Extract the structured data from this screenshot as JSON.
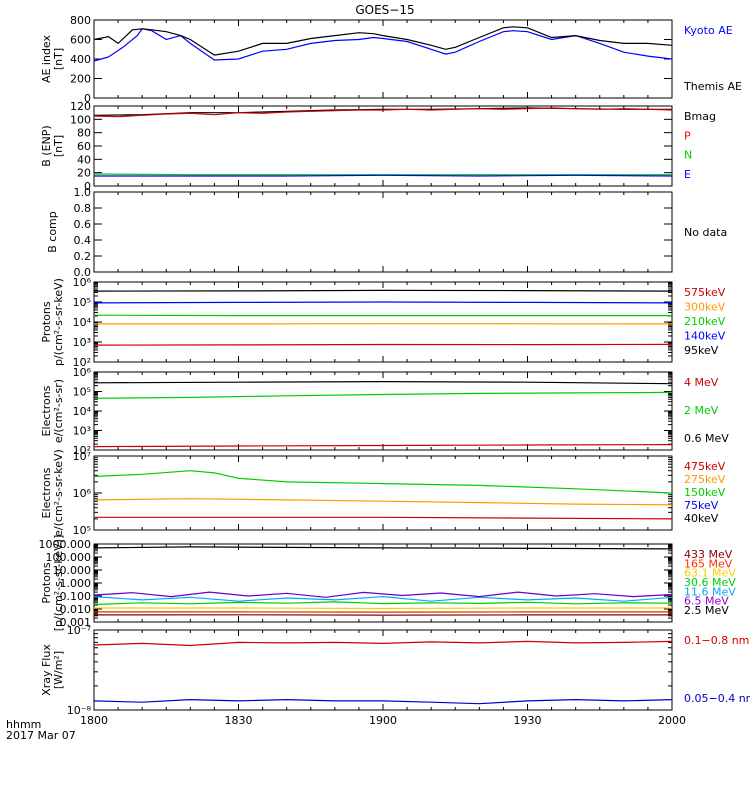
{
  "figure": {
    "title": "GOES−15",
    "time_label_row1": "hhmm",
    "time_label_row2": "2017 Mar 07"
  },
  "chart_data": [
    {
      "id": "ae",
      "type": "line",
      "ylabel": [
        "AE index",
        "[nT]"
      ],
      "ylim": [
        0,
        800
      ],
      "yscale": "linear",
      "yticks": [
        0,
        200,
        400,
        600,
        800
      ],
      "ytick_labels": [
        "0",
        "200",
        "400",
        "600",
        "800"
      ],
      "x_range": [
        "18:00",
        "20:00"
      ],
      "series": [
        {
          "name": "Kyoto AE",
          "color": "#0000ff",
          "x": [
            0,
            3,
            6,
            9,
            10,
            12,
            15,
            18,
            20,
            25,
            30,
            35,
            40,
            45,
            50,
            55,
            58,
            60,
            65,
            70,
            73,
            75,
            80,
            85,
            87,
            90,
            95,
            100,
            105,
            110,
            115,
            120
          ],
          "y": [
            380,
            420,
            520,
            640,
            710,
            690,
            600,
            640,
            560,
            390,
            400,
            480,
            500,
            560,
            590,
            600,
            620,
            610,
            580,
            500,
            450,
            470,
            580,
            680,
            690,
            680,
            600,
            640,
            560,
            470,
            430,
            400
          ]
        },
        {
          "name": "Themis AE",
          "color": "#000000",
          "x": [
            0,
            3,
            5,
            8,
            10,
            12,
            15,
            18,
            20,
            25,
            30,
            35,
            40,
            45,
            50,
            55,
            58,
            60,
            65,
            70,
            73,
            75,
            80,
            85,
            87,
            90,
            95,
            100,
            105,
            110,
            115,
            120
          ],
          "y": [
            600,
            630,
            560,
            700,
            710,
            700,
            680,
            640,
            600,
            440,
            480,
            560,
            560,
            610,
            640,
            670,
            660,
            640,
            600,
            540,
            500,
            520,
            620,
            720,
            730,
            720,
            620,
            640,
            590,
            560,
            560,
            540
          ]
        }
      ],
      "legend": [
        {
          "text": "Kyoto AE",
          "color": "#0000ff"
        },
        {
          "text": "Themis AE",
          "color": "#000000"
        }
      ]
    },
    {
      "id": "bfield",
      "type": "line",
      "ylabel": [
        "B (ENP)",
        "[nT]"
      ],
      "ylim": [
        0,
        120
      ],
      "yscale": "linear",
      "yticks": [
        0,
        20,
        40,
        60,
        80,
        100,
        120
      ],
      "ytick_labels": [
        "0",
        "20",
        "40",
        "60",
        "80",
        "100",
        "120"
      ],
      "series": [
        {
          "name": "Bmag",
          "color": "#000000",
          "x": [
            0,
            10,
            20,
            30,
            40,
            50,
            60,
            70,
            80,
            90,
            100,
            110,
            120
          ],
          "y": [
            106,
            107,
            110,
            110,
            112,
            114,
            115,
            115,
            116,
            117,
            116,
            115,
            115
          ]
        },
        {
          "name": "P",
          "color": "#cc0000",
          "x": [
            0,
            5,
            10,
            15,
            20,
            25,
            30,
            35,
            40,
            45,
            50,
            55,
            60,
            65,
            70,
            75,
            80,
            85,
            90,
            95,
            100,
            105,
            110,
            115,
            120
          ],
          "y": [
            105,
            104,
            106,
            108,
            109,
            107,
            110,
            109,
            111,
            112,
            113,
            114,
            114,
            115,
            114,
            115,
            116,
            115,
            116,
            117,
            116,
            115,
            116,
            115,
            114
          ]
        },
        {
          "name": "N",
          "color": "#00cc00",
          "x": [
            0,
            20,
            40,
            60,
            80,
            100,
            120
          ],
          "y": [
            18,
            17,
            17,
            17,
            17,
            17,
            17
          ]
        },
        {
          "name": "E",
          "color": "#0000ff",
          "x": [
            0,
            20,
            40,
            60,
            80,
            100,
            120
          ],
          "y": [
            15,
            15,
            15,
            16,
            15,
            16,
            15
          ]
        }
      ],
      "legend": [
        {
          "text": "Bmag",
          "color": "#000000"
        },
        {
          "text": "P",
          "color": "#ff0000"
        },
        {
          "text": "N",
          "color": "#00cc00"
        },
        {
          "text": "E",
          "color": "#0000ff"
        }
      ]
    },
    {
      "id": "bcomp",
      "type": "line",
      "ylabel": [
        "B comp"
      ],
      "ylim": [
        0,
        1
      ],
      "yscale": "linear",
      "yticks": [
        0,
        0.2,
        0.4,
        0.6,
        0.8,
        1.0
      ],
      "ytick_labels": [
        "0.0",
        "0.2",
        "0.4",
        "0.6",
        "0.8",
        "1.0"
      ],
      "series": [],
      "legend": [
        {
          "text": "No data",
          "color": "#000000"
        }
      ]
    },
    {
      "id": "protons1",
      "type": "line",
      "ylabel": [
        "Protons",
        "p/(cm²-s-sr-keV)"
      ],
      "ylim": [
        100,
        1000000
      ],
      "yscale": "log",
      "yticks": [
        100,
        1000,
        10000,
        100000,
        1000000
      ],
      "ytick_labels": [
        "10²",
        "10³",
        "10⁴",
        "10⁵",
        "10⁶"
      ],
      "series": [
        {
          "name": "575keV",
          "color": "#cc0000",
          "x": [
            0,
            30,
            60,
            90,
            120
          ],
          "y": [
            700,
            720,
            750,
            740,
            760
          ]
        },
        {
          "name": "300keV",
          "color": "#ff9900",
          "x": [
            0,
            30,
            60,
            90,
            120
          ],
          "y": [
            8000,
            8000,
            8200,
            8100,
            8000
          ]
        },
        {
          "name": "210keV",
          "color": "#00cc00",
          "x": [
            0,
            30,
            60,
            90,
            120
          ],
          "y": [
            22000,
            21000,
            21000,
            21000,
            21000
          ]
        },
        {
          "name": "140keV",
          "color": "#0000ff",
          "x": [
            0,
            30,
            60,
            90,
            120
          ],
          "y": [
            90000,
            95000,
            100000,
            95000,
            90000
          ]
        },
        {
          "name": "95keV",
          "color": "#000000",
          "x": [
            0,
            30,
            60,
            90,
            120
          ],
          "y": [
            350000,
            360000,
            380000,
            370000,
            350000
          ]
        }
      ],
      "legend": [
        {
          "text": "575keV",
          "color": "#cc0000"
        },
        {
          "text": "300keV",
          "color": "#ff9900"
        },
        {
          "text": "210keV",
          "color": "#00cc00"
        },
        {
          "text": "140keV",
          "color": "#0000ff"
        },
        {
          "text": "95keV",
          "color": "#000000"
        }
      ]
    },
    {
      "id": "electrons1",
      "type": "line",
      "ylabel": [
        "Electrons",
        "e/(cm²-s-sr)"
      ],
      "ylim": [
        100,
        1000000
      ],
      "yscale": "log",
      "yticks": [
        100,
        1000,
        10000,
        100000,
        1000000
      ],
      "ytick_labels": [
        "10²",
        "10³",
        "10⁴",
        "10⁵",
        "10⁶"
      ],
      "series": [
        {
          "name": "4 MeV",
          "color": "#cc0000",
          "x": [
            0,
            30,
            60,
            90,
            120
          ],
          "y": [
            150,
            160,
            170,
            180,
            190
          ]
        },
        {
          "name": "2 MeV",
          "color": "#00cc00",
          "x": [
            0,
            20,
            40,
            60,
            80,
            100,
            120
          ],
          "y": [
            45000,
            50000,
            60000,
            70000,
            80000,
            85000,
            90000
          ]
        },
        {
          "name": "0.6 MeV",
          "color": "#000000",
          "x": [
            0,
            30,
            60,
            90,
            120
          ],
          "y": [
            280000,
            300000,
            320000,
            300000,
            250000
          ]
        }
      ],
      "legend": [
        {
          "text": "4 MeV",
          "color": "#cc0000"
        },
        {
          "text": "2 MeV",
          "color": "#00cc00"
        },
        {
          "text": "0.6 MeV",
          "color": "#000000"
        }
      ]
    },
    {
      "id": "electrons2",
      "type": "line",
      "ylabel": [
        "Electrons",
        "e/(cm²-s-sr-keV)"
      ],
      "ylim": [
        100000,
        10000000
      ],
      "yscale": "log",
      "yticks": [
        100000,
        1000000,
        10000000
      ],
      "ytick_labels": [
        "10⁵",
        "10⁶",
        "10⁷"
      ],
      "series": [
        {
          "name": "475keV",
          "color": "#cc0000",
          "x": [
            0,
            30,
            60,
            90,
            120
          ],
          "y": [
            220000,
            220000,
            220000,
            210000,
            200000
          ]
        },
        {
          "name": "275keV",
          "color": "#ff9900",
          "x": [
            0,
            20,
            40,
            60,
            80,
            100,
            120
          ],
          "y": [
            650000,
            700000,
            650000,
            600000,
            550000,
            500000,
            480000
          ]
        },
        {
          "name": "150keV",
          "color": "#00cc00",
          "x": [
            0,
            10,
            20,
            25,
            30,
            40,
            60,
            80,
            100,
            120
          ],
          "y": [
            2800000,
            3200000,
            4000000,
            3500000,
            2500000,
            2000000,
            1800000,
            1600000,
            1300000,
            1000000
          ]
        },
        {
          "name": "75keV",
          "color": "#0000ff",
          "x": [],
          "y": []
        },
        {
          "name": "40keV",
          "color": "#000000",
          "x": [],
          "y": []
        }
      ],
      "legend": [
        {
          "text": "475keV",
          "color": "#cc0000"
        },
        {
          "text": "275keV",
          "color": "#ff9900"
        },
        {
          "text": "150keV",
          "color": "#00cc00"
        },
        {
          "text": "75keV",
          "color": "#0000ff"
        },
        {
          "text": "40keV",
          "color": "#000000"
        }
      ]
    },
    {
      "id": "protons2",
      "type": "line",
      "ylabel": [
        "Protons",
        "[p/(cm²-s-sr-keV)]"
      ],
      "ylim": [
        0.001,
        1000
      ],
      "yscale": "log",
      "yticks": [
        0.001,
        0.01,
        0.1,
        1,
        10,
        100,
        1000
      ],
      "ytick_labels": [
        "0.001",
        "0.010",
        "0.100",
        "1.000",
        "10.000",
        "100.000",
        "1000.000"
      ],
      "series": [
        {
          "name": "433 MeV",
          "color": "#8b0000",
          "x": [
            0,
            30,
            60,
            90,
            120
          ],
          "y": [
            0.0035,
            0.0036,
            0.0034,
            0.0035,
            0.0035
          ]
        },
        {
          "name": "165 MeV",
          "color": "#cc3300",
          "x": [
            0,
            30,
            60,
            90,
            120
          ],
          "y": [
            0.006,
            0.006,
            0.0058,
            0.006,
            0.006
          ]
        },
        {
          "name": "63.1 MeV",
          "color": "#ffcc00",
          "x": [
            0,
            30,
            60,
            90,
            120
          ],
          "y": [
            0.012,
            0.012,
            0.011,
            0.012,
            0.012
          ]
        },
        {
          "name": "30.6 MeV",
          "color": "#00cc00",
          "x": [
            0,
            10,
            20,
            30,
            40,
            50,
            60,
            70,
            80,
            90,
            100,
            110,
            120
          ],
          "y": [
            0.022,
            0.03,
            0.025,
            0.032,
            0.028,
            0.035,
            0.026,
            0.03,
            0.027,
            0.033,
            0.025,
            0.03,
            0.028
          ]
        },
        {
          "name": "11.6 MeV",
          "color": "#00aaff",
          "x": [
            0,
            10,
            20,
            30,
            40,
            50,
            60,
            70,
            80,
            90,
            100,
            110,
            120
          ],
          "y": [
            0.09,
            0.05,
            0.08,
            0.04,
            0.07,
            0.05,
            0.09,
            0.04,
            0.08,
            0.05,
            0.07,
            0.04,
            0.08
          ]
        },
        {
          "name": "6.5 MeV",
          "color": "#6600cc",
          "x": [
            0,
            8,
            16,
            24,
            32,
            40,
            48,
            56,
            64,
            72,
            80,
            88,
            96,
            104,
            112,
            120
          ],
          "y": [
            0.12,
            0.18,
            0.09,
            0.2,
            0.1,
            0.16,
            0.08,
            0.19,
            0.11,
            0.17,
            0.09,
            0.2,
            0.1,
            0.15,
            0.09,
            0.13
          ]
        },
        {
          "name": "2.5 MeV",
          "color": "#000000",
          "x": [
            0,
            20,
            40,
            60,
            80,
            100,
            120
          ],
          "y": [
            500,
            600,
            550,
            500,
            480,
            450,
            420
          ]
        }
      ],
      "legend": [
        {
          "text": "433 MeV",
          "color": "#8b0000"
        },
        {
          "text": "165 MeV",
          "color": "#ff3300"
        },
        {
          "text": "63.1 MeV",
          "color": "#ffcc00"
        },
        {
          "text": "30.6 MeV",
          "color": "#00cc00"
        },
        {
          "text": "11.6 MeV",
          "color": "#00aaff"
        },
        {
          "text": "6.5 MeV",
          "color": "#9900cc"
        },
        {
          "text": "2.5 MeV",
          "color": "#000000"
        }
      ]
    },
    {
      "id": "xray",
      "type": "line",
      "ylabel": [
        "Xray Flux",
        "[W/m²]"
      ],
      "ylim": [
        1e-08,
        1e-07
      ],
      "yscale": "log",
      "yticks": [
        1e-08,
        1e-07
      ],
      "ytick_labels": [
        "10⁻⁸",
        "10⁻⁷"
      ],
      "x_ticks": [
        "1800",
        "1830",
        "1900",
        "1930",
        "2000"
      ],
      "series": [
        {
          "name": "0.1-0.8 nm",
          "color": "#cc0000",
          "x": [
            0,
            10,
            20,
            30,
            40,
            50,
            60,
            70,
            80,
            90,
            100,
            110,
            120
          ],
          "y": [
            6.5e-08,
            6.8e-08,
            6.4e-08,
            7e-08,
            6.9e-08,
            7e-08,
            6.8e-08,
            7.1e-08,
            6.9e-08,
            7.2e-08,
            6.9e-08,
            7e-08,
            7.2e-08
          ]
        },
        {
          "name": "0.05-0.4 nm",
          "color": "#0000cc",
          "x": [
            0,
            10,
            20,
            30,
            40,
            50,
            60,
            70,
            80,
            90,
            100,
            110,
            120
          ],
          "y": [
            1.3e-08,
            1.25e-08,
            1.35e-08,
            1.3e-08,
            1.35e-08,
            1.3e-08,
            1.3e-08,
            1.25e-08,
            1.2e-08,
            1.3e-08,
            1.35e-08,
            1.3e-08,
            1.35e-08
          ]
        }
      ],
      "legend": [
        {
          "text": "0.1−0.8 nm",
          "color": "#cc0000"
        },
        {
          "text": "0.05−0.4 nm",
          "color": "#0000cc"
        }
      ]
    }
  ]
}
